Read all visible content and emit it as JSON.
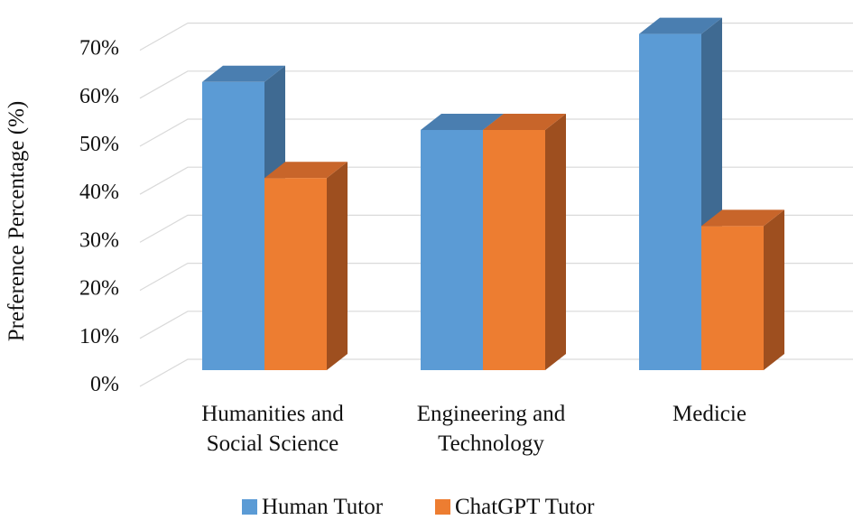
{
  "chart_data": {
    "type": "bar",
    "ylabel": "Preference Percentage (%)",
    "categories": [
      [
        "Humanities and",
        "Social Science"
      ],
      [
        "Engineering and",
        "Technology"
      ],
      [
        "Medicie"
      ]
    ],
    "series": [
      {
        "name": "Human Tutor",
        "values": [
          60,
          50,
          70
        ]
      },
      {
        "name": "ChatGPT Tutor",
        "values": [
          40,
          50,
          30
        ]
      }
    ],
    "ylim": [
      0,
      70
    ],
    "yticks": [
      "0%",
      "10%",
      "20%",
      "30%",
      "40%",
      "50%",
      "60%",
      "70%"
    ],
    "grid": true,
    "legend": "bottom",
    "colors": {
      "human_front": "#5b9bd5",
      "human_top": "#4a7eb0",
      "human_side": "#3f6a92",
      "chatgpt_front": "#ed7d31",
      "chatgpt_top": "#c8652a",
      "chatgpt_side": "#9e4f1f",
      "grid": "#d9d9d9"
    }
  }
}
